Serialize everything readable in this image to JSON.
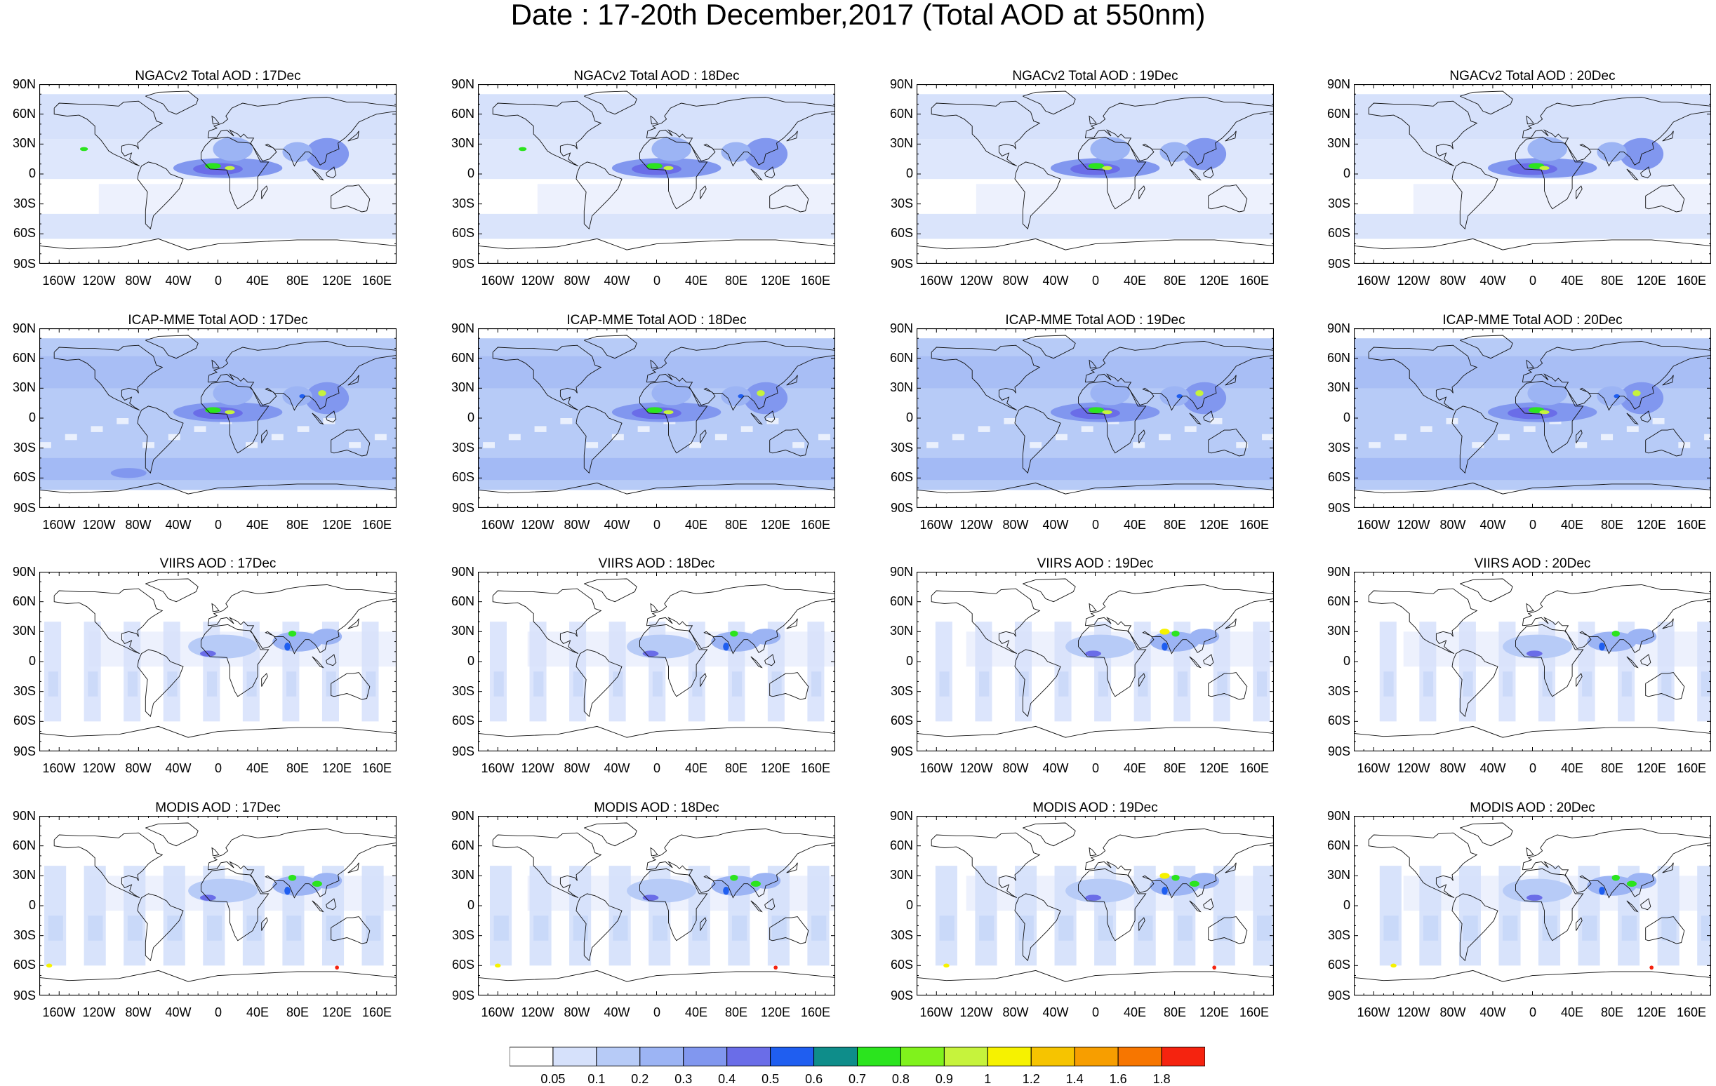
{
  "title": "Date : 17-20th December,2017 (Total AOD at 550nm)",
  "lat_labels": [
    "90N",
    "60N",
    "30N",
    "0",
    "30S",
    "60S",
    "90S"
  ],
  "lon_labels": [
    "160W",
    "120W",
    "80W",
    "40W",
    "0",
    "40E",
    "80E",
    "120E",
    "160E"
  ],
  "rows": [
    {
      "product": "NGACv2 Total AOD",
      "style": "model",
      "panels": [
        {
          "title": "NGACv2 Total AOD : 17Dec"
        },
        {
          "title": "NGACv2 Total AOD : 18Dec"
        },
        {
          "title": "NGACv2 Total AOD : 19Dec"
        },
        {
          "title": "NGACv2 Total AOD : 20Dec"
        }
      ]
    },
    {
      "product": "ICAP-MME Total AOD",
      "style": "ensemble",
      "panels": [
        {
          "title": "ICAP-MME Total AOD : 17Dec"
        },
        {
          "title": "ICAP-MME Total AOD : 18Dec"
        },
        {
          "title": "ICAP-MME Total AOD : 19Dec"
        },
        {
          "title": "ICAP-MME Total AOD : 20Dec"
        }
      ]
    },
    {
      "product": "VIIRS AOD",
      "style": "satellite-sparse",
      "panels": [
        {
          "title": "VIIRS AOD : 17Dec"
        },
        {
          "title": "VIIRS AOD : 18Dec"
        },
        {
          "title": "VIIRS AOD : 19Dec"
        },
        {
          "title": "VIIRS AOD : 20Dec"
        }
      ]
    },
    {
      "product": "MODIS AOD",
      "style": "satellite-swath",
      "panels": [
        {
          "title": "MODIS AOD : 17Dec"
        },
        {
          "title": "MODIS AOD : 18Dec"
        },
        {
          "title": "MODIS AOD : 19Dec"
        },
        {
          "title": "MODIS AOD : 20Dec"
        }
      ]
    }
  ],
  "colorbar": {
    "labels": [
      "0.05",
      "0.1",
      "0.2",
      "0.3",
      "0.4",
      "0.5",
      "0.6",
      "0.7",
      "0.8",
      "0.9",
      "1",
      "1.2",
      "1.4",
      "1.6",
      "1.8"
    ],
    "colors": [
      "#ffffff",
      "#d6e1fb",
      "#b7cbf7",
      "#9cb4f4",
      "#8197ef",
      "#6a6de8",
      "#1f5ef0",
      "#0e8d8a",
      "#2be41e",
      "#80f21c",
      "#c6f33c",
      "#f6f200",
      "#f6c400",
      "#f79e00",
      "#f77600",
      "#f5230f"
    ]
  },
  "chart_data": {
    "type": "heatmap",
    "title": "Date : 17-20th December,2017 (Total AOD at 550nm)",
    "variable": "Total AOD at 550nm",
    "xaxis": {
      "range": [
        -180,
        180
      ],
      "ticks": [
        "160W",
        "120W",
        "80W",
        "40W",
        "0",
        "40E",
        "80E",
        "120E",
        "160E"
      ]
    },
    "yaxis": {
      "range": [
        -90,
        90
      ],
      "ticks": [
        "90N",
        "60N",
        "30N",
        "0",
        "30S",
        "60S",
        "90S"
      ]
    },
    "panels": [
      "NGACv2 Total AOD : 17Dec",
      "NGACv2 Total AOD : 18Dec",
      "NGACv2 Total AOD : 19Dec",
      "NGACv2 Total AOD : 20Dec",
      "ICAP-MME Total AOD : 17Dec",
      "ICAP-MME Total AOD : 18Dec",
      "ICAP-MME Total AOD : 19Dec",
      "ICAP-MME Total AOD : 20Dec",
      "VIIRS AOD : 17Dec",
      "VIIRS AOD : 18Dec",
      "VIIRS AOD : 19Dec",
      "VIIRS AOD : 20Dec",
      "MODIS AOD : 17Dec",
      "MODIS AOD : 18Dec",
      "MODIS AOD : 19Dec",
      "MODIS AOD : 20Dec"
    ],
    "color_levels": [
      0.05,
      0.1,
      0.2,
      0.3,
      0.4,
      0.5,
      0.6,
      0.7,
      0.8,
      0.9,
      1,
      1.2,
      1.4,
      1.6,
      1.8
    ],
    "color_scale": [
      "#ffffff",
      "#d6e1fb",
      "#b7cbf7",
      "#9cb4f4",
      "#8197ef",
      "#6a6de8",
      "#1f5ef0",
      "#0e8d8a",
      "#2be41e",
      "#80f21c",
      "#c6f33c",
      "#f6f200",
      "#f6c400",
      "#f79e00",
      "#f77600",
      "#f5230f"
    ],
    "legend": "bottom"
  }
}
